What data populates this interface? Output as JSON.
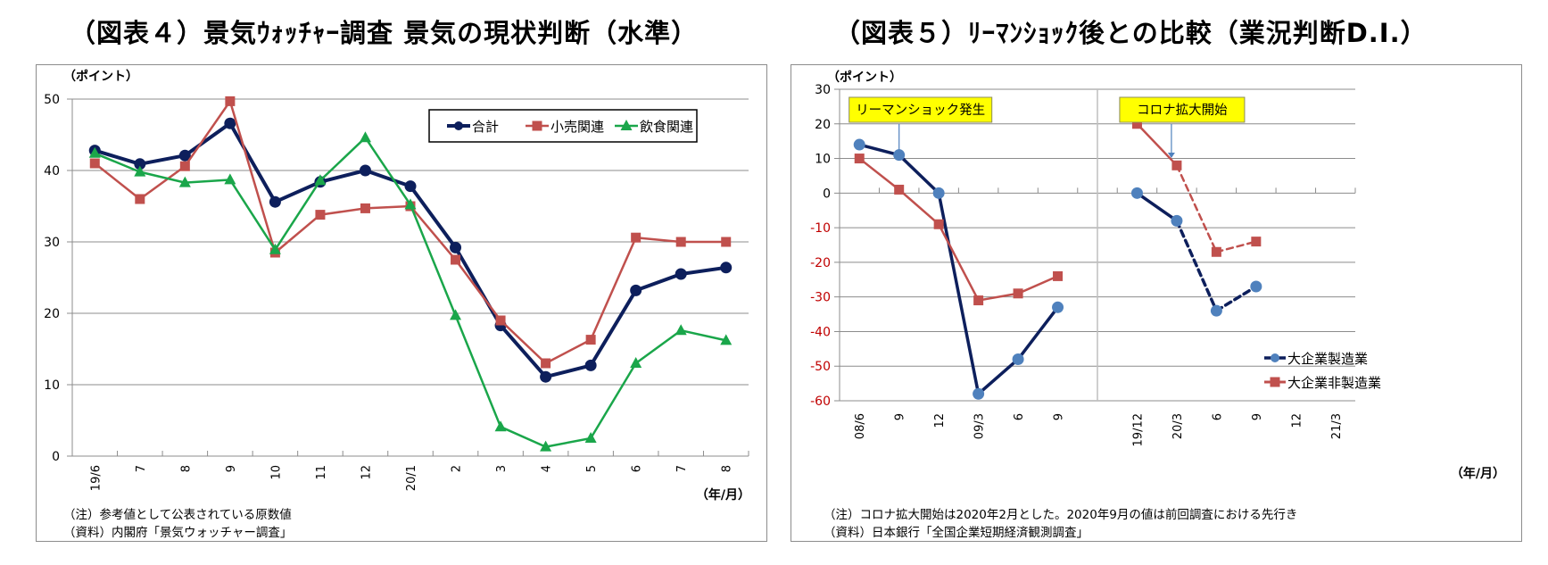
{
  "figure4": {
    "title": "（図表４）景気ｳｫｯﾁｬｰ調査 景気の現状判断（水準）",
    "note": "（注）参考値として公表されている原数値",
    "source": "（資料）内閣府「景気ウォッチャー調査」"
  },
  "figure5": {
    "title": "（図表５）ﾘｰﾏﾝｼｮｯｸ後との比較（業況判断D.I.）",
    "note": "（注）コロナ拡大開始は2020年2月とした。2020年9月の値は前回調査における先行き",
    "source": "（資料）日本銀行「全国企業短期経済観測調査」"
  },
  "chart_data": [
    {
      "type": "line",
      "title": "（図表４）景気ｳｫｯﾁｬｰ調査 景気の現状判断（水準）",
      "ylabel": "（ポイント）",
      "xlabel": "（年/月）",
      "ylim": [
        0,
        50
      ],
      "yticks": [
        0,
        10,
        20,
        30,
        40,
        50
      ],
      "grid": true,
      "legend": "top-right",
      "categories": [
        "19/6",
        "7",
        "8",
        "9",
        "10",
        "11",
        "12",
        "20/1",
        "2",
        "3",
        "4",
        "5",
        "6",
        "7",
        "8"
      ],
      "series": [
        {
          "name": "合計",
          "color": "#0d1f5c",
          "marker": "circle",
          "values": [
            42.8,
            40.9,
            42.1,
            46.6,
            35.6,
            38.4,
            40.0,
            37.8,
            29.2,
            18.3,
            11.1,
            12.7,
            23.2,
            25.5,
            26.4
          ]
        },
        {
          "name": "小売関連",
          "color": "#c0504d",
          "marker": "square",
          "values": [
            41.0,
            36.0,
            40.6,
            49.7,
            28.5,
            33.8,
            34.7,
            35.0,
            27.5,
            19.0,
            13.0,
            16.3,
            30.6,
            30.0,
            30.0
          ]
        },
        {
          "name": "飲食関連",
          "color": "#1aa64a",
          "marker": "triangle",
          "values": [
            42.4,
            39.8,
            38.3,
            38.7,
            28.9,
            38.6,
            44.6,
            35.2,
            19.7,
            4.1,
            1.3,
            2.5,
            13.0,
            17.6,
            16.2
          ]
        }
      ]
    },
    {
      "type": "line",
      "title": "（図表５）ﾘｰﾏﾝｼｮｯｸ後との比較（業況判断D.I.）",
      "ylabel": "（ポイント）",
      "xlabel": "（年/月）",
      "ylim": [
        -60,
        30
      ],
      "yticks": [
        -60,
        -50,
        -40,
        -30,
        -20,
        -10,
        0,
        10,
        20,
        30
      ],
      "negative_tick_color": "#c00000",
      "grid": true,
      "legend": "bottom-right",
      "categories": [
        "08/6",
        "9",
        "12",
        "09/3",
        "6",
        "9",
        "",
        "19/12",
        "20/3",
        "6",
        "9",
        "12",
        "21/3"
      ],
      "separator_after_index": 6,
      "annotations": [
        {
          "text": "リーマンショック発生",
          "at_category_index": 1
        },
        {
          "text": "コロナ拡大開始",
          "at_category_index": 8
        }
      ],
      "series": [
        {
          "name": "大企業製造業",
          "color": "#0d1f5c",
          "marker": "circle",
          "marker_color": "#4f81bd",
          "values": [
            14,
            11,
            0,
            -58,
            -48,
            -33,
            null,
            0,
            -8,
            -34,
            -27,
            null,
            null
          ],
          "dashed_from_index": 9
        },
        {
          "name": "大企業非製造業",
          "color": "#c0504d",
          "marker": "square",
          "marker_color": "#c0504d",
          "values": [
            10,
            1,
            -9,
            -31,
            -29,
            -24,
            null,
            20,
            8,
            -17,
            -14,
            null,
            null
          ],
          "dashed_from_index": 9
        }
      ]
    }
  ]
}
